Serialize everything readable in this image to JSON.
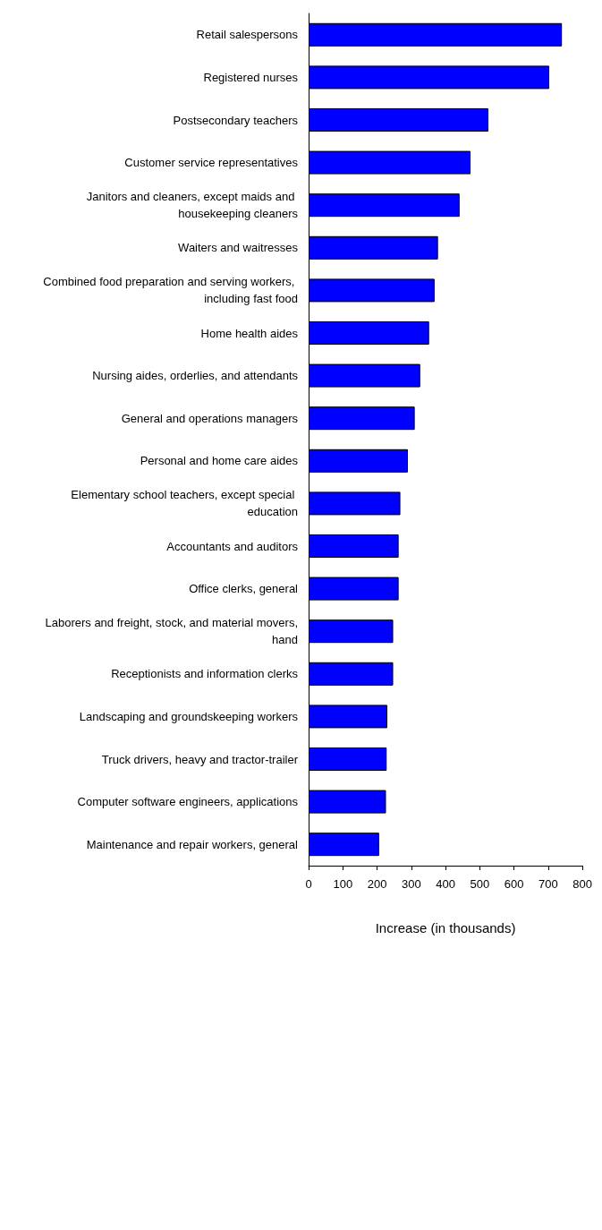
{
  "chart_data": {
    "type": "bar",
    "orientation": "horizontal",
    "xlabel": "Increase (in thousands)",
    "categories": [
      "Retail salespersons",
      "Registered nurses",
      "Postsecondary teachers",
      "Customer service representatives",
      "Janitors and cleaners, except maids and housekeeping cleaners",
      "Waiters and waitresses",
      "Combined food preparation and serving workers, including fast food",
      "Home health aides",
      "Nursing aides, orderlies, and attendants",
      "General and operations managers",
      "Personal and home care aides",
      "Elementary school teachers, except special education",
      "Accountants and auditors",
      "Office clerks, general",
      "Laborers and freight, stock, and material movers, hand",
      "Receptionists and information clerks",
      "Landscaping and groundskeeping workers",
      "Truck drivers, heavy and tractor-trailer",
      "Computer software engineers, applications",
      "Maintenance and repair workers, general"
    ],
    "values": [
      740,
      703,
      525,
      473,
      441,
      378,
      368,
      352,
      326,
      310,
      290,
      268,
      263,
      263,
      247,
      247,
      230,
      228,
      226,
      206
    ],
    "color": "#0000ff",
    "xlim": [
      0,
      800
    ],
    "xticks": [
      0,
      100,
      200,
      300,
      400,
      500,
      600,
      700,
      800
    ],
    "grid": false
  }
}
